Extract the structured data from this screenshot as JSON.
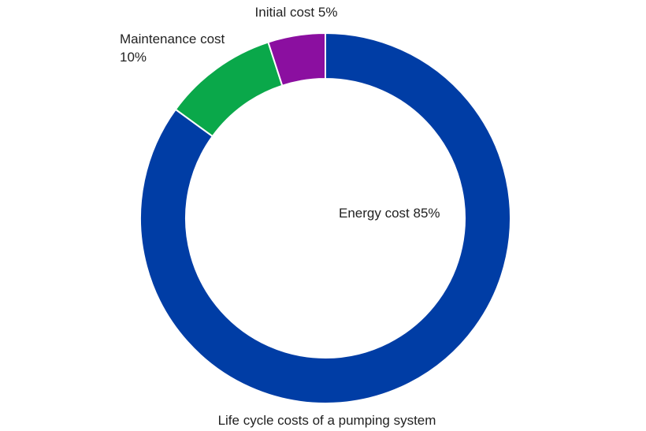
{
  "chart_data": {
    "type": "donut",
    "title": "Life cycle costs of a pumping system",
    "categories": [
      "Energy cost",
      "Maintenance cost",
      "Initial cost"
    ],
    "values": [
      85,
      10,
      5
    ],
    "value_labels": [
      "85%",
      "10%",
      "5%"
    ],
    "colors": [
      "#003da5",
      "#0aa84a",
      "#8b0fa0"
    ]
  }
}
